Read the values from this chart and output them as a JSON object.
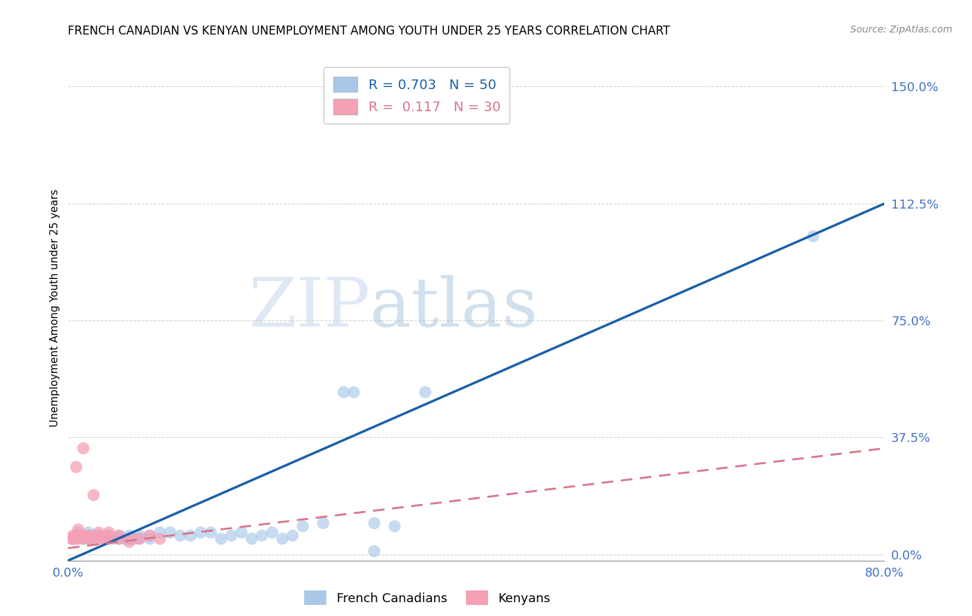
{
  "title": "FRENCH CANADIAN VS KENYAN UNEMPLOYMENT AMONG YOUTH UNDER 25 YEARS CORRELATION CHART",
  "source": "Source: ZipAtlas.com",
  "ylabel": "Unemployment Among Youth under 25 years",
  "xlim": [
    0.0,
    0.8
  ],
  "ylim": [
    -0.02,
    1.6
  ],
  "xticks": [
    0.0,
    0.2,
    0.4,
    0.6,
    0.8
  ],
  "xtick_labels": [
    "0.0%",
    "",
    "",
    "",
    "80.0%"
  ],
  "ytick_labels": [
    "0.0%",
    "37.5%",
    "75.0%",
    "112.5%",
    "150.0%"
  ],
  "yticks": [
    0.0,
    0.375,
    0.75,
    1.125,
    1.5
  ],
  "blue_color": "#a8c8e8",
  "pink_color": "#f4a0b5",
  "blue_line_color": "#1a5fa8",
  "pink_line_color": "#d9748a",
  "axis_tick_color": "#4472c4",
  "watermark_zip": "ZIP",
  "watermark_atlas": "atlas",
  "legend_line1": "R = 0.703   N = 50",
  "legend_line2": "R =  0.117   N = 30",
  "legend_label_blue": "French Canadians",
  "legend_label_pink": "Kenyans",
  "blue_scatter_x": [
    0.005,
    0.01,
    0.01,
    0.015,
    0.015,
    0.02,
    0.02,
    0.02,
    0.025,
    0.025,
    0.03,
    0.03,
    0.035,
    0.035,
    0.04,
    0.04,
    0.045,
    0.05,
    0.05,
    0.055,
    0.06,
    0.06,
    0.065,
    0.07,
    0.07,
    0.08,
    0.08,
    0.09,
    0.1,
    0.11,
    0.12,
    0.13,
    0.14,
    0.15,
    0.16,
    0.17,
    0.18,
    0.19,
    0.2,
    0.21,
    0.22,
    0.23,
    0.25,
    0.27,
    0.28,
    0.3,
    0.32,
    0.35,
    0.73,
    0.3
  ],
  "blue_scatter_y": [
    0.05,
    0.06,
    0.07,
    0.05,
    0.06,
    0.05,
    0.06,
    0.07,
    0.05,
    0.06,
    0.05,
    0.06,
    0.05,
    0.06,
    0.05,
    0.06,
    0.05,
    0.05,
    0.06,
    0.05,
    0.05,
    0.06,
    0.05,
    0.05,
    0.06,
    0.05,
    0.06,
    0.07,
    0.07,
    0.06,
    0.06,
    0.07,
    0.07,
    0.05,
    0.06,
    0.07,
    0.05,
    0.06,
    0.07,
    0.05,
    0.06,
    0.09,
    0.1,
    0.52,
    0.52,
    0.1,
    0.09,
    0.52,
    1.02,
    0.01
  ],
  "pink_scatter_x": [
    0.003,
    0.005,
    0.005,
    0.007,
    0.008,
    0.008,
    0.01,
    0.01,
    0.01,
    0.015,
    0.015,
    0.015,
    0.02,
    0.02,
    0.025,
    0.025,
    0.03,
    0.03,
    0.03,
    0.035,
    0.04,
    0.04,
    0.04,
    0.05,
    0.05,
    0.06,
    0.07,
    0.08,
    0.09,
    0.06
  ],
  "pink_scatter_y": [
    0.05,
    0.05,
    0.06,
    0.05,
    0.06,
    0.28,
    0.05,
    0.06,
    0.08,
    0.05,
    0.06,
    0.34,
    0.05,
    0.06,
    0.05,
    0.19,
    0.05,
    0.06,
    0.07,
    0.05,
    0.05,
    0.06,
    0.07,
    0.05,
    0.06,
    0.05,
    0.05,
    0.06,
    0.05,
    0.04
  ],
  "blue_line_x": [
    0.0,
    0.8
  ],
  "blue_line_y": [
    -0.02,
    1.125
  ],
  "pink_line_x": [
    0.0,
    0.8
  ],
  "pink_line_y": [
    0.02,
    0.34
  ]
}
